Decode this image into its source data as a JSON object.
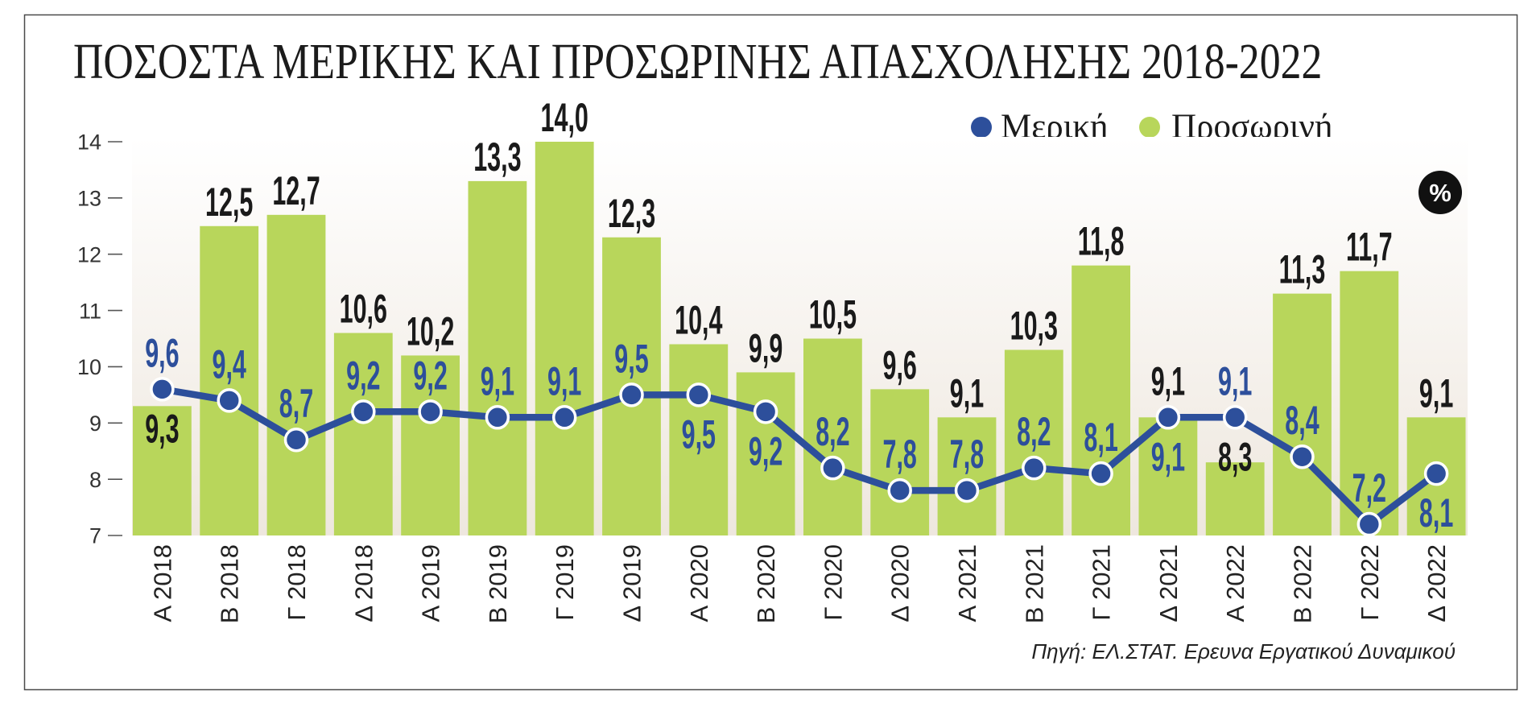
{
  "chart_data": {
    "type": "bar",
    "title": "ΠΟΣΟΣΤΑ ΜΕΡΙΚΗΣ ΚΑΙ ΠΡΟΣΩΡΙΝΗΣ ΑΠΑΣΧΟΛΗΣΗΣ 2018-2022",
    "categories": [
      "Α 2018",
      "Β 2018",
      "Γ 2018",
      "Δ 2018",
      "Α 2019",
      "Β 2019",
      "Γ 2019",
      "Δ 2019",
      "Α 2020",
      "Β 2020",
      "Γ 2020",
      "Δ 2020",
      "Α 2021",
      "Β 2021",
      "Γ 2021",
      "Δ 2021",
      "Α 2022",
      "Β 2022",
      "Γ 2022",
      "Δ 2022"
    ],
    "series": [
      {
        "name": "Μερική",
        "type": "line",
        "color": "#2d4f9b",
        "values": [
          9.6,
          9.4,
          8.7,
          9.2,
          9.2,
          9.1,
          9.1,
          9.5,
          9.5,
          9.2,
          8.2,
          7.8,
          7.8,
          8.2,
          8.1,
          9.1,
          9.1,
          8.4,
          7.2,
          8.1
        ],
        "labels": [
          "9,6",
          "9,4",
          "8,7",
          "9,2",
          "9,2",
          "9,1",
          "9,1",
          "9,5",
          "9,5",
          "9,2",
          "8,2",
          "7,8",
          "7,8",
          "8,2",
          "8,1",
          "9,1",
          "9,1",
          "8,4",
          "7,2",
          "8,1"
        ]
      },
      {
        "name": "Προσωρινή",
        "type": "bar",
        "color": "#b8d65b",
        "values": [
          9.3,
          12.5,
          12.7,
          10.6,
          10.2,
          13.3,
          14.0,
          12.3,
          10.4,
          9.9,
          10.5,
          9.6,
          9.1,
          10.3,
          11.8,
          9.1,
          8.3,
          11.3,
          11.7,
          9.1
        ],
        "labels": [
          "9,3",
          "12,5",
          "12,7",
          "10,6",
          "10,2",
          "13,3",
          "14,0",
          "12,3",
          "10,4",
          "9,9",
          "10,5",
          "9,6",
          "9,1",
          "10,3",
          "11,8",
          "9,1",
          "8,3",
          "11,3",
          "11,7",
          "9,1"
        ]
      }
    ],
    "ylim": [
      7,
      14
    ],
    "yticks": [
      7,
      8,
      9,
      10,
      11,
      12,
      13,
      14
    ],
    "grid": false,
    "legend_position": "top-right",
    "unit": "%",
    "source": "Πηγή: ΕΛ.ΣΤΑΤ. Ερευνα Εργατικού Δυναμικού"
  }
}
